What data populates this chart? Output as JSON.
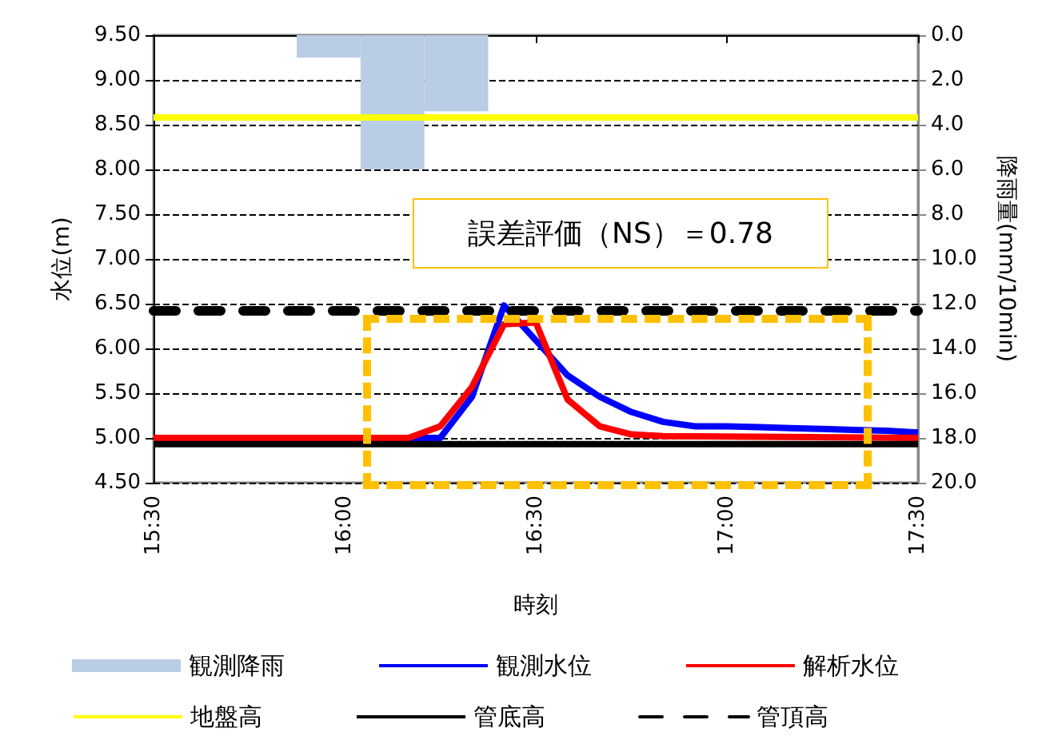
{
  "chart_data": {
    "type": "line",
    "xlabel": "時刻",
    "ylabel": "水位(m)",
    "y2label": "降雨量(mm/10min)",
    "annotations": [
      "誤差評価（NS）＝0.78"
    ],
    "xlim": [
      15.5,
      17.5
    ],
    "xticks": [
      {
        "value": 15.5,
        "label": "15:30"
      },
      {
        "value": 16,
        "label": "16:00"
      },
      {
        "value": 16.5,
        "label": "16:30"
      },
      {
        "value": 17,
        "label": "17:00"
      },
      {
        "value": 17.5,
        "label": "17:30"
      }
    ],
    "ylim": [
      4.5,
      9.5
    ],
    "yticks": [
      {
        "value": 4.5,
        "label": "4.50"
      },
      {
        "value": 5,
        "label": "5.00"
      },
      {
        "value": 5.5,
        "label": "5.50"
      },
      {
        "value": 6,
        "label": "6.00"
      },
      {
        "value": 6.5,
        "label": "6.50"
      },
      {
        "value": 7,
        "label": "7.00"
      },
      {
        "value": 7.5,
        "label": "7.50"
      },
      {
        "value": 8,
        "label": "8.00"
      },
      {
        "value": 8.5,
        "label": "8.50"
      },
      {
        "value": 9,
        "label": "9.00"
      },
      {
        "value": 9.5,
        "label": "9.50"
      }
    ],
    "y2lim": [
      20,
      0
    ],
    "y2ticks": [
      {
        "value": 0,
        "label": "0.0"
      },
      {
        "value": 2,
        "label": "2.0"
      },
      {
        "value": 4,
        "label": "4.0"
      },
      {
        "value": 6,
        "label": "6.0"
      },
      {
        "value": 8,
        "label": "8.0"
      },
      {
        "value": 10,
        "label": "10.0"
      },
      {
        "value": 12,
        "label": "12.0"
      },
      {
        "value": 14,
        "label": "14.0"
      },
      {
        "value": 16,
        "label": "16.0"
      },
      {
        "value": 18,
        "label": "18.0"
      },
      {
        "value": 20,
        "label": "20.0"
      }
    ],
    "grid": "y",
    "legend": "bottom",
    "marker": "none",
    "series": [
      {
        "name": "観測降雨",
        "type": "bar",
        "axis": "y2",
        "color": "#b9cde5",
        "x": [
          15.958,
          16.125,
          16.292
        ],
        "values": [
          1.0,
          6.0,
          3.4
        ]
      },
      {
        "name": "観測水位",
        "color": "#0000ff",
        "line_style": "solid",
        "x": [
          15.5,
          16.25,
          16.333,
          16.417,
          16.5,
          16.583,
          16.667,
          16.75,
          16.833,
          16.917,
          17.0,
          17.083,
          17.167,
          17.25,
          17.333,
          17.417,
          17.5
        ],
        "values": [
          5.0,
          5.0,
          5.46,
          6.48,
          6.09,
          5.7,
          5.46,
          5.29,
          5.18,
          5.13,
          5.13,
          5.12,
          5.11,
          5.1,
          5.09,
          5.08,
          5.06
        ]
      },
      {
        "name": "解析水位",
        "color": "#ff0000",
        "line_style": "solid",
        "x": [
          15.5,
          16.167,
          16.25,
          16.333,
          16.417,
          16.5,
          16.583,
          16.667,
          16.75,
          16.833,
          17.5
        ],
        "values": [
          5.0,
          5.0,
          5.13,
          5.57,
          6.27,
          6.29,
          5.43,
          5.13,
          5.04,
          5.02,
          5.0
        ]
      },
      {
        "name": "地盤高",
        "color": "#ffff00",
        "line_style": "solid",
        "x": [
          15.5,
          17.5
        ],
        "values": [
          8.58,
          8.58
        ]
      },
      {
        "name": "管底高",
        "color": "#000000",
        "line_style": "solid",
        "x": [
          15.5,
          17.5
        ],
        "values": [
          4.93,
          4.93
        ]
      },
      {
        "name": "管頂高",
        "color": "#000000",
        "line_style": "dashed",
        "x": [
          15.5,
          17.5
        ],
        "values": [
          6.42,
          6.42
        ]
      }
    ]
  }
}
